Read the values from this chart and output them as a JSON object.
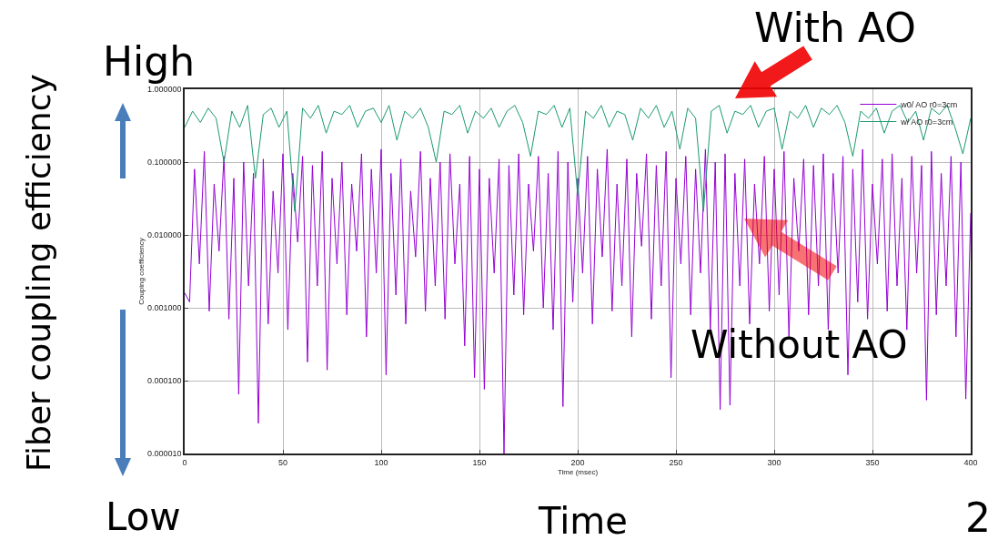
{
  "chart_data": {
    "type": "line",
    "xlabel": "Time (msec)",
    "ylabel": "Couping coefficiency",
    "log": "y",
    "grid": true,
    "legend": "top right",
    "marker": "none",
    "line_style": "solid",
    "xlim": [
      0,
      400
    ],
    "xticks": [
      0,
      50,
      100,
      150,
      200,
      250,
      300,
      350,
      400
    ],
    "ylim": [
      1e-05,
      1
    ],
    "yticks": [
      {
        "value": 1e-05,
        "label": "0.000010"
      },
      {
        "value": 0.0001,
        "label": "0.000100"
      },
      {
        "value": 0.001,
        "label": "0.001000"
      },
      {
        "value": 0.01,
        "label": "0.010000"
      },
      {
        "value": 0.1,
        "label": "0.100000"
      },
      {
        "value": 1,
        "label": "1.000000"
      }
    ],
    "annotations": [
      "High",
      "Low",
      "Fiber coupling efficiency",
      "Time",
      "With AO",
      "Without AO",
      "2"
    ],
    "series": [
      {
        "name": "w0/ AO r0=3cm",
        "color": "#9400d3",
        "x": [
          0,
          2.5,
          5,
          7.5,
          10,
          12.5,
          15,
          17.5,
          20,
          22.5,
          25,
          27.5,
          30,
          32.5,
          35,
          37.5,
          40,
          42.5,
          45,
          47.5,
          50,
          52.5,
          55,
          57.5,
          60,
          62.5,
          65,
          67.5,
          70,
          72.5,
          75,
          77.5,
          80,
          82.5,
          85,
          87.5,
          90,
          92.5,
          95,
          97.5,
          100,
          102.5,
          105,
          107.5,
          110,
          112.5,
          115,
          117.5,
          120,
          122.5,
          125,
          127.5,
          130,
          132.5,
          135,
          137.5,
          140,
          142.5,
          145,
          147.5,
          150,
          152.5,
          155,
          157.5,
          160,
          162.5,
          165,
          167.5,
          170,
          172.5,
          175,
          177.5,
          180,
          182.5,
          185,
          187.5,
          190,
          192.5,
          195,
          197.5,
          200,
          202.5,
          205,
          207.5,
          210,
          212.5,
          215,
          217.5,
          220,
          222.5,
          225,
          227.5,
          230,
          232.5,
          235,
          237.5,
          240,
          242.5,
          245,
          247.5,
          250,
          252.5,
          255,
          257.5,
          260,
          262.5,
          265,
          267.5,
          270,
          272.5,
          275,
          277.5,
          280,
          282.5,
          285,
          287.5,
          290,
          292.5,
          295,
          297.5,
          300,
          302.5,
          305,
          307.5,
          310,
          312.5,
          315,
          317.5,
          320,
          322.5,
          325,
          327.5,
          330,
          332.5,
          335,
          337.5,
          340,
          342.5,
          345,
          347.5,
          350,
          352.5,
          355,
          357.5,
          360,
          362.5,
          365,
          367.5,
          370,
          372.5,
          375,
          377.5,
          380,
          382.5,
          385,
          387.5,
          390,
          392.5,
          395,
          397.5,
          400
        ],
        "values": [
          0.0016,
          0.0012,
          0.08,
          0.004,
          0.14,
          0.0009,
          0.05,
          0.006,
          0.12,
          0.0007,
          0.06,
          6.5e-05,
          0.1,
          0.002,
          0.07,
          2.6e-05,
          0.11,
          0.0006,
          0.04,
          0.003,
          0.13,
          0.0005,
          0.07,
          0.008,
          0.12,
          0.00018,
          0.09,
          0.002,
          0.14,
          0.00014,
          0.06,
          0.004,
          0.1,
          0.0008,
          0.05,
          0.006,
          0.13,
          0.0004,
          0.08,
          0.003,
          0.15,
          0.00012,
          0.07,
          0.0015,
          0.11,
          0.0006,
          0.04,
          0.005,
          0.14,
          0.0009,
          0.06,
          0.002,
          0.1,
          0.0007,
          0.13,
          0.004,
          0.05,
          0.0003,
          0.12,
          0.00011,
          0.08,
          7.6e-05,
          0.06,
          0.003,
          0.11,
          1e-05,
          0.09,
          0.0015,
          0.13,
          0.0008,
          0.05,
          0.006,
          0.12,
          0.001,
          0.07,
          0.0005,
          0.14,
          4.4e-05,
          0.1,
          0.0012,
          0.06,
          0.003,
          0.12,
          0.0006,
          0.08,
          0.005,
          0.15,
          0.0009,
          0.05,
          0.002,
          0.11,
          0.0004,
          0.07,
          0.007,
          0.13,
          0.0007,
          0.09,
          0.002,
          0.14,
          0.00011,
          0.06,
          0.004,
          0.12,
          0.0008,
          0.08,
          0.003,
          0.15,
          0.0005,
          0.1,
          4e-05,
          0.13,
          4.6e-05,
          0.07,
          0.002,
          0.11,
          0.0006,
          0.05,
          0.004,
          0.12,
          0.0009,
          0.08,
          0.0015,
          0.14,
          0.0004,
          0.06,
          0.006,
          0.11,
          0.0008,
          0.09,
          0.002,
          0.13,
          0.0005,
          0.07,
          0.003,
          0.12,
          0.00012,
          0.08,
          0.0012,
          0.15,
          0.0007,
          0.05,
          0.004,
          0.11,
          0.0009,
          0.13,
          0.002,
          0.06,
          0.0005,
          0.12,
          0.003,
          0.09,
          5.4e-05,
          0.14,
          0.0008,
          0.07,
          0.002,
          0.12,
          0.0004,
          0.1,
          5.6e-05,
          0.02
        ]
      },
      {
        "name": "w/ AO r0=3cm",
        "color": "#1a9a6e",
        "x": [
          0,
          4,
          8,
          12,
          16,
          20,
          24,
          28,
          32,
          36,
          40,
          44,
          48,
          52,
          56,
          60,
          64,
          68,
          72,
          76,
          80,
          84,
          88,
          92,
          96,
          100,
          104,
          108,
          112,
          116,
          120,
          124,
          128,
          132,
          136,
          140,
          144,
          148,
          152,
          156,
          160,
          164,
          168,
          172,
          176,
          180,
          184,
          188,
          192,
          196,
          200,
          204,
          208,
          212,
          216,
          220,
          224,
          228,
          232,
          236,
          240,
          244,
          248,
          252,
          256,
          260,
          264,
          268,
          272,
          276,
          280,
          284,
          288,
          292,
          296,
          300,
          304,
          308,
          312,
          316,
          320,
          324,
          328,
          332,
          336,
          340,
          344,
          348,
          352,
          356,
          360,
          364,
          368,
          372,
          376,
          380,
          384,
          388,
          392,
          396,
          400
        ],
        "values": [
          0.3,
          0.5,
          0.35,
          0.55,
          0.4,
          0.1,
          0.5,
          0.3,
          0.6,
          0.06,
          0.45,
          0.55,
          0.3,
          0.5,
          0.021,
          0.55,
          0.4,
          0.6,
          0.25,
          0.5,
          0.45,
          0.6,
          0.3,
          0.5,
          0.55,
          0.35,
          0.6,
          0.2,
          0.5,
          0.4,
          0.55,
          0.3,
          0.1,
          0.5,
          0.45,
          0.6,
          0.25,
          0.5,
          0.4,
          0.55,
          0.3,
          0.5,
          0.6,
          0.35,
          0.12,
          0.5,
          0.45,
          0.6,
          0.3,
          0.55,
          0.035,
          0.5,
          0.4,
          0.6,
          0.3,
          0.5,
          0.45,
          0.2,
          0.55,
          0.4,
          0.6,
          0.3,
          0.5,
          0.15,
          0.55,
          0.4,
          0.021,
          0.5,
          0.6,
          0.25,
          0.5,
          0.45,
          0.6,
          0.3,
          0.5,
          0.55,
          0.15,
          0.5,
          0.4,
          0.6,
          0.3,
          0.55,
          0.45,
          0.6,
          0.35,
          0.12,
          0.5,
          0.4,
          0.55,
          0.25,
          0.5,
          0.6,
          0.35,
          0.5,
          0.2,
          0.55,
          0.45,
          0.6,
          0.3,
          0.13,
          0.4
        ]
      }
    ]
  }
}
